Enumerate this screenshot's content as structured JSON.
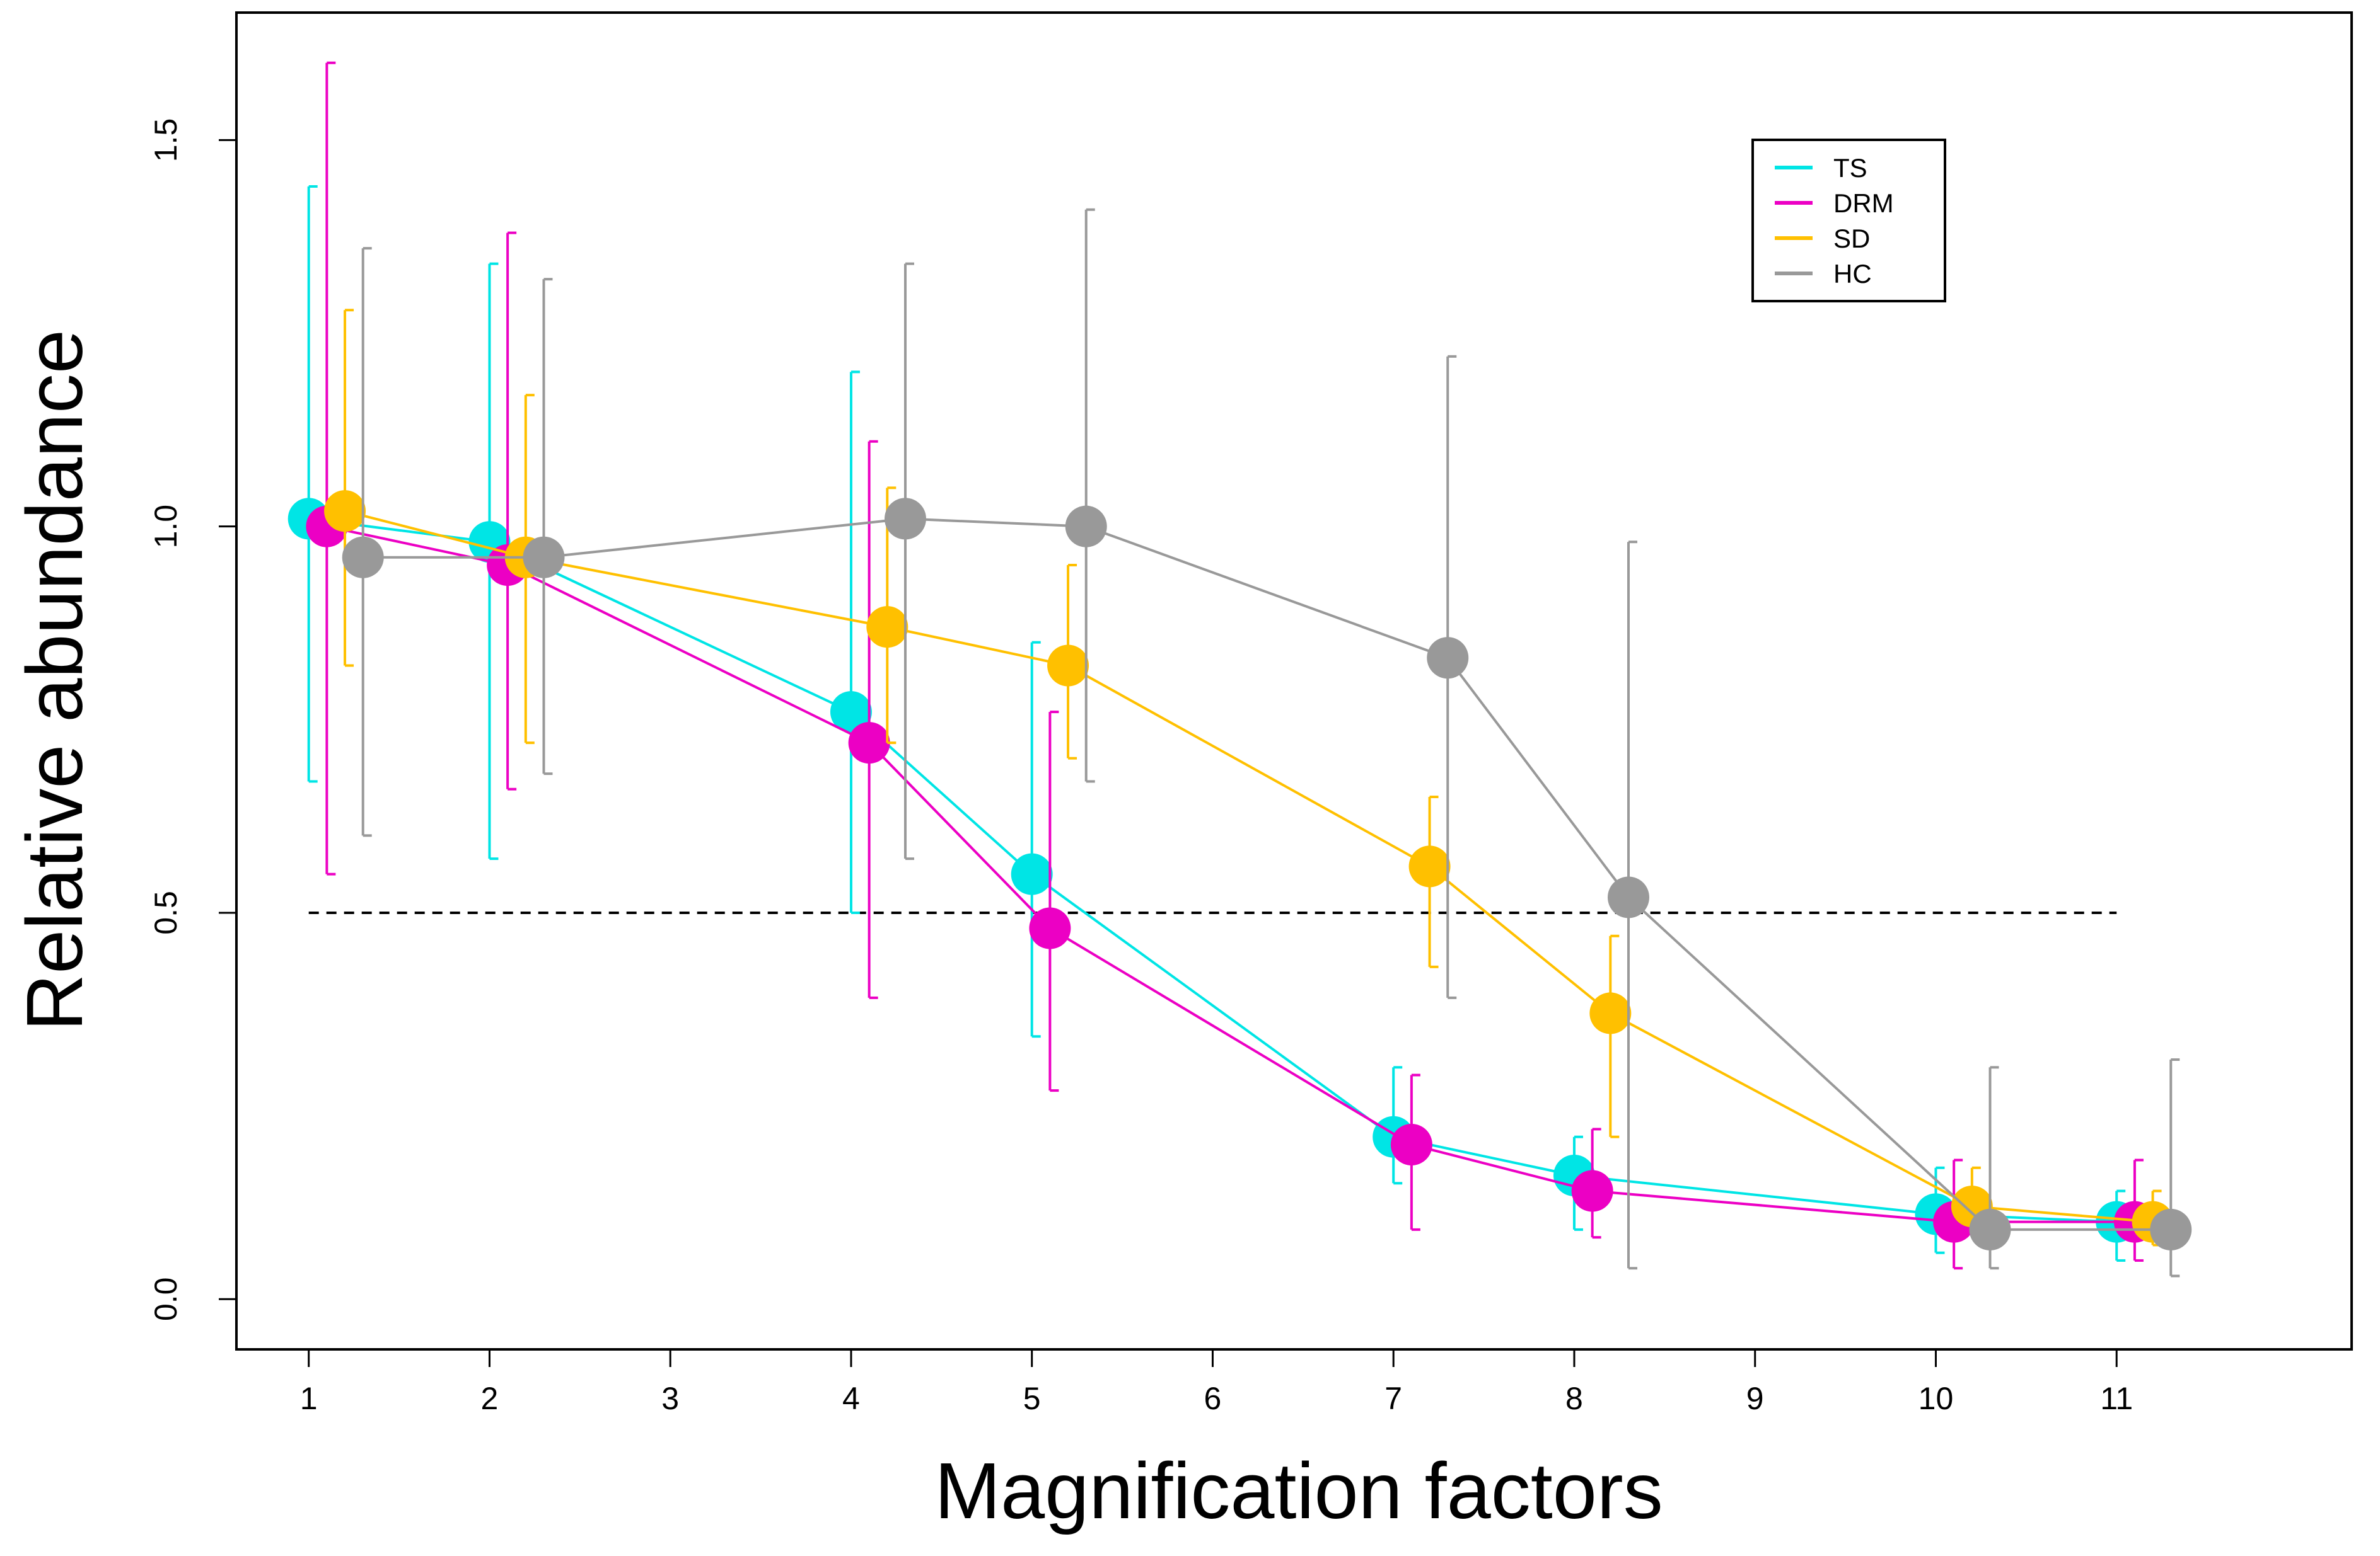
{
  "chart_data": {
    "type": "line",
    "title": "",
    "xlabel": "Magnification factors",
    "ylabel": "Relative abundance",
    "x_ticks": [
      1,
      2,
      3,
      4,
      5,
      6,
      7,
      8,
      9,
      10,
      11
    ],
    "x_tick_labels": [
      "1",
      "2",
      "3",
      "4",
      "5",
      "6",
      "7",
      "8",
      "9",
      "10",
      "11"
    ],
    "y_ticks": [
      0.0,
      0.5,
      1.0,
      1.5
    ],
    "y_tick_labels": [
      "0.0",
      "0.5",
      "1.0",
      "1.5"
    ],
    "xlim": [
      0.6,
      12.3
    ],
    "ylim": [
      -0.065,
      1.665
    ],
    "reference_line": {
      "y": 0.5,
      "x_range": [
        1,
        11
      ],
      "style": "dashed"
    },
    "legend": {
      "position": "top-right",
      "entries": [
        "TS",
        "DRM",
        "SD",
        "HC"
      ]
    },
    "series": [
      {
        "name": "TS",
        "color": "#00E5E5",
        "x": [
          1,
          2,
          4,
          5,
          7,
          8,
          10,
          11
        ],
        "y": [
          1.01,
          0.98,
          0.76,
          0.55,
          0.21,
          0.16,
          0.11,
          0.1
        ],
        "err_low": [
          0.67,
          0.57,
          0.5,
          0.34,
          0.15,
          0.09,
          0.06,
          0.05
        ],
        "err_high": [
          1.44,
          1.34,
          1.2,
          0.85,
          0.3,
          0.21,
          0.17,
          0.14
        ]
      },
      {
        "name": "DRM",
        "color": "#EC00C4",
        "x": [
          1.1,
          2.1,
          4.1,
          5.1,
          7.1,
          8.1,
          10.1,
          11.1
        ],
        "y": [
          1.0,
          0.95,
          0.72,
          0.48,
          0.2,
          0.14,
          0.1,
          0.1
        ],
        "err_low": [
          0.55,
          0.66,
          0.39,
          0.27,
          0.09,
          0.08,
          0.04,
          0.05
        ],
        "err_high": [
          1.6,
          1.38,
          1.11,
          0.76,
          0.29,
          0.22,
          0.18,
          0.18
        ]
      },
      {
        "name": "SD",
        "color": "#FFC000",
        "x": [
          1.2,
          2.2,
          4.2,
          5.2,
          7.2,
          8.2,
          10.2,
          11.2
        ],
        "y": [
          1.02,
          0.96,
          0.87,
          0.82,
          0.56,
          0.37,
          0.12,
          0.1
        ],
        "err_low": [
          0.82,
          0.72,
          0.72,
          0.7,
          0.43,
          0.21,
          0.09,
          0.07
        ],
        "err_high": [
          1.28,
          1.17,
          1.05,
          0.95,
          0.65,
          0.47,
          0.17,
          0.14
        ]
      },
      {
        "name": "HC",
        "color": "#999999",
        "x": [
          1.3,
          2.3,
          4.3,
          5.3,
          7.3,
          8.3,
          10.3,
          11.3
        ],
        "y": [
          0.96,
          0.96,
          1.01,
          1.0,
          0.83,
          0.52,
          0.09,
          0.09
        ],
        "err_low": [
          0.6,
          0.68,
          0.57,
          0.67,
          0.39,
          0.04,
          0.04,
          0.03
        ],
        "err_high": [
          1.36,
          1.32,
          1.34,
          1.41,
          1.22,
          0.98,
          0.3,
          0.31
        ]
      }
    ]
  }
}
